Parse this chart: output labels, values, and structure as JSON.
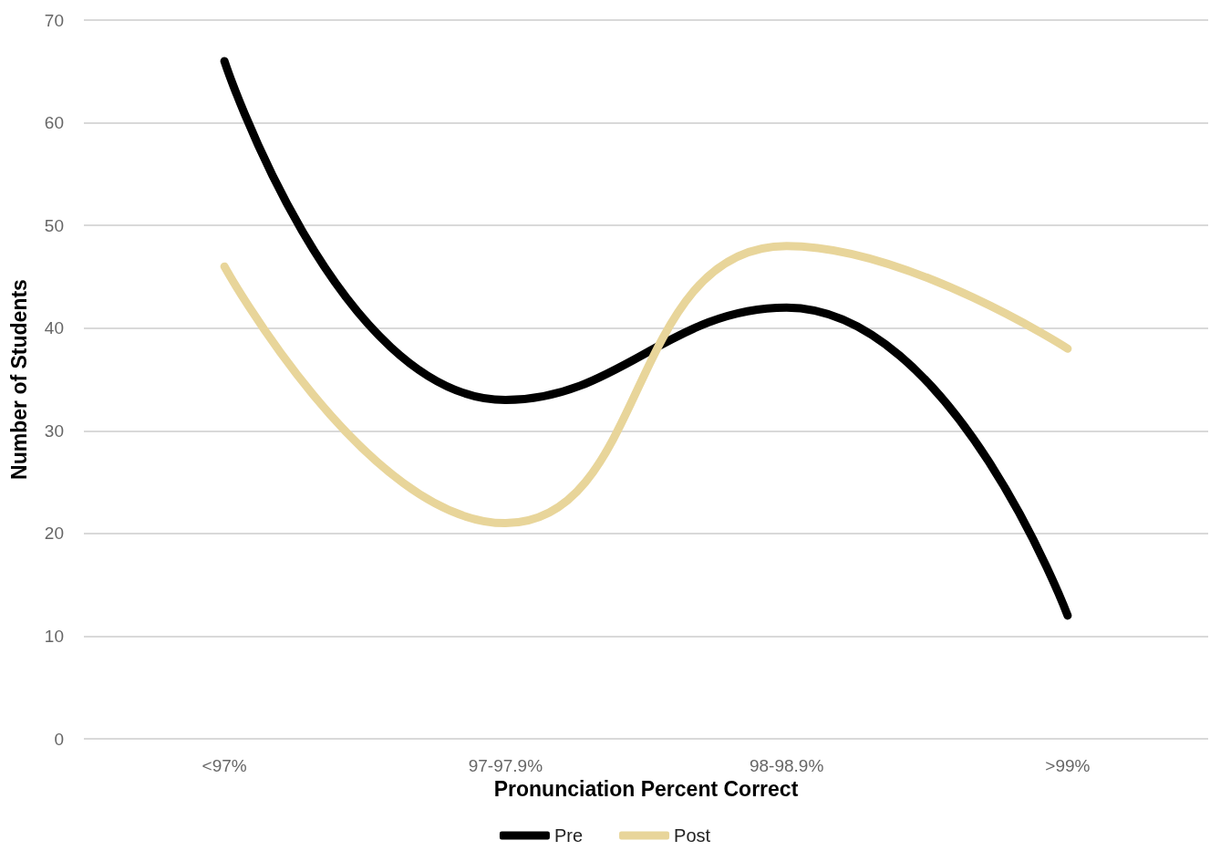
{
  "chart_data": {
    "type": "line",
    "xlabel": "Pronunciation Percent Correct",
    "ylabel": "Number of Students",
    "categories": [
      "<97%",
      "97-97.9%",
      "98-98.9%",
      ">99%"
    ],
    "series": [
      {
        "name": "Pre",
        "color": "#000000",
        "values": [
          66,
          33,
          42,
          12
        ]
      },
      {
        "name": "Post",
        "color": "#e8d59a",
        "values": [
          46,
          21,
          48,
          38
        ]
      }
    ],
    "ylim": [
      0,
      70
    ],
    "yticks": [
      0,
      10,
      20,
      30,
      40,
      50,
      60,
      70
    ],
    "grid": "y",
    "legend": "bottom",
    "marker": "none",
    "line_style": "solid"
  }
}
